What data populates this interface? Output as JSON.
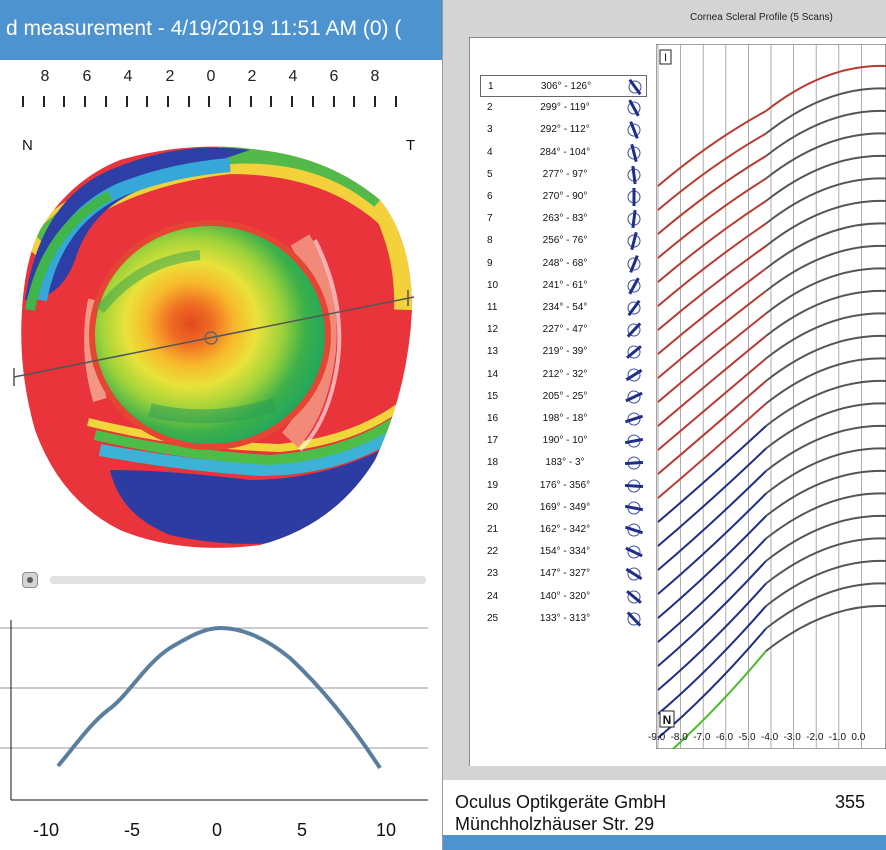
{
  "title_bar": {
    "text": "d measurement - 4/19/2019 11:51 AM (0) ("
  },
  "topography": {
    "scale_labels": [
      "8",
      "6",
      "4",
      "2",
      "0",
      "2",
      "4",
      "6",
      "8"
    ],
    "nasal_label": "N",
    "temporal_label": "T"
  },
  "elevation_profile": {
    "x_tick_labels": [
      "-10",
      "-5",
      "0",
      "5",
      "10"
    ]
  },
  "cornea_scleral_profile": {
    "title": "Cornea Scleral Profile (5 Scans)",
    "top_marker": "I",
    "bottom_marker": "N",
    "x_axis_labels": [
      "-9.0",
      "-8.0",
      "-7.0",
      "-6.0",
      "-5.0",
      "-4.0",
      "-3.0",
      "-2.0",
      "-1.0",
      "0.0"
    ],
    "scans": [
      {
        "num": "1",
        "angles": "306° - 126°"
      },
      {
        "num": "2",
        "angles": "299° - 119°"
      },
      {
        "num": "3",
        "angles": "292° - 112°"
      },
      {
        "num": "4",
        "angles": "284° - 104°"
      },
      {
        "num": "5",
        "angles": "277° - 97°"
      },
      {
        "num": "6",
        "angles": "270° - 90°"
      },
      {
        "num": "7",
        "angles": "263° - 83°"
      },
      {
        "num": "8",
        "angles": "256° - 76°"
      },
      {
        "num": "9",
        "angles": "248° - 68°"
      },
      {
        "num": "10",
        "angles": "241° - 61°"
      },
      {
        "num": "11",
        "angles": "234° - 54°"
      },
      {
        "num": "12",
        "angles": "227° - 47°"
      },
      {
        "num": "13",
        "angles": "219° - 39°"
      },
      {
        "num": "14",
        "angles": "212° - 32°"
      },
      {
        "num": "15",
        "angles": "205° - 25°"
      },
      {
        "num": "16",
        "angles": "198° - 18°"
      },
      {
        "num": "17",
        "angles": "190° - 10°"
      },
      {
        "num": "18",
        "angles": "183° - 3°"
      },
      {
        "num": "19",
        "angles": "176° - 356°"
      },
      {
        "num": "20",
        "angles": "169° - 349°"
      },
      {
        "num": "21",
        "angles": "162° - 342°"
      },
      {
        "num": "22",
        "angles": "154° - 334°"
      },
      {
        "num": "23",
        "angles": "147° - 327°"
      },
      {
        "num": "24",
        "angles": "140° - 320°"
      },
      {
        "num": "25",
        "angles": "133° - 313°"
      }
    ]
  },
  "footer": {
    "company": "Oculus Optikgeräte GmbH",
    "street": "Münchholzhäuser Str. 29",
    "number_fragment": "355"
  },
  "colors": {
    "title_bar": "#4d93cf",
    "profile_curve": "#5a7f9e",
    "scan_red": "#b73b33",
    "scan_dark": "#555555",
    "scan_blue": "#1f2e86",
    "scan_green": "#4dbb2f"
  }
}
